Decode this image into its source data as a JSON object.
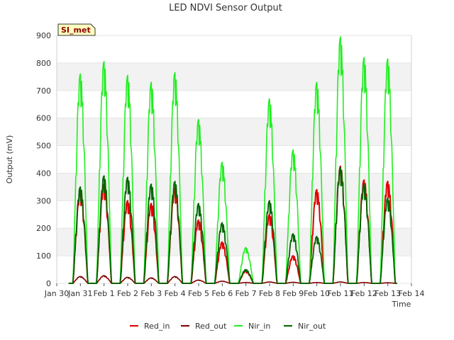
{
  "chart_data": {
    "type": "line",
    "title": "LED NDVI Sensor Output",
    "xlabel": "Time",
    "ylabel": "Output (mV)",
    "ylim": [
      0,
      900
    ],
    "yticks": [
      0,
      100,
      200,
      300,
      400,
      500,
      600,
      700,
      800,
      900
    ],
    "xlim": [
      "2024-01-30",
      "2024-02-14"
    ],
    "xtick_labels": [
      "Jan 30",
      "Jan 31",
      "Feb 1",
      "Feb 2",
      "Feb 3",
      "Feb 4",
      "Feb 5",
      "Feb 6",
      "Feb 7",
      "Feb 8",
      "Feb 9",
      "Feb 10",
      "Feb 11",
      "Feb 12",
      "Feb 13",
      "Feb 14"
    ],
    "grid": "horizontal bands",
    "legend_position": "bottom",
    "annotation": "SI_met",
    "daily_peaks_note": "Diurnal peaks near midday of each day Jan 31 – Feb 13",
    "series": [
      {
        "name": "Red_in",
        "color": "#e00000",
        "x": [
          "Jan 31",
          "Feb 1",
          "Feb 2",
          "Feb 3",
          "Feb 4",
          "Feb 5",
          "Feb 6",
          "Feb 7",
          "Feb 8",
          "Feb 9",
          "Feb 10",
          "Feb 11",
          "Feb 12",
          "Feb 13"
        ],
        "values": [
          335,
          360,
          300,
          290,
          345,
          230,
          150,
          45,
          250,
          100,
          340,
          425,
          375,
          370
        ]
      },
      {
        "name": "Red_out",
        "color": "#800000",
        "x": [
          "Jan 31",
          "Feb 1",
          "Feb 2",
          "Feb 3",
          "Feb 4",
          "Feb 5",
          "Feb 6",
          "Feb 7",
          "Feb 8",
          "Feb 9",
          "Feb 10",
          "Feb 11",
          "Feb 12",
          "Feb 13"
        ],
        "values": [
          25,
          28,
          22,
          20,
          25,
          12,
          8,
          3,
          5,
          4,
          3,
          5,
          3,
          2
        ]
      },
      {
        "name": "Nir_in",
        "color": "#22ee22",
        "x": [
          "Jan 31",
          "Feb 1",
          "Feb 2",
          "Feb 3",
          "Feb 4",
          "Feb 5",
          "Feb 6",
          "Feb 7",
          "Feb 8",
          "Feb 9",
          "Feb 10",
          "Feb 11",
          "Feb 12",
          "Feb 13"
        ],
        "values": [
          760,
          805,
          755,
          730,
          765,
          595,
          440,
          130,
          670,
          485,
          730,
          895,
          820,
          815
        ]
      },
      {
        "name": "Nir_out",
        "color": "#006400",
        "x": [
          "Jan 31",
          "Feb 1",
          "Feb 2",
          "Feb 3",
          "Feb 4",
          "Feb 5",
          "Feb 6",
          "Feb 7",
          "Feb 8",
          "Feb 9",
          "Feb 10",
          "Feb 11",
          "Feb 12",
          "Feb 13"
        ],
        "values": [
          350,
          390,
          385,
          360,
          370,
          290,
          220,
          50,
          300,
          180,
          170,
          420,
          360,
          310
        ]
      }
    ]
  }
}
